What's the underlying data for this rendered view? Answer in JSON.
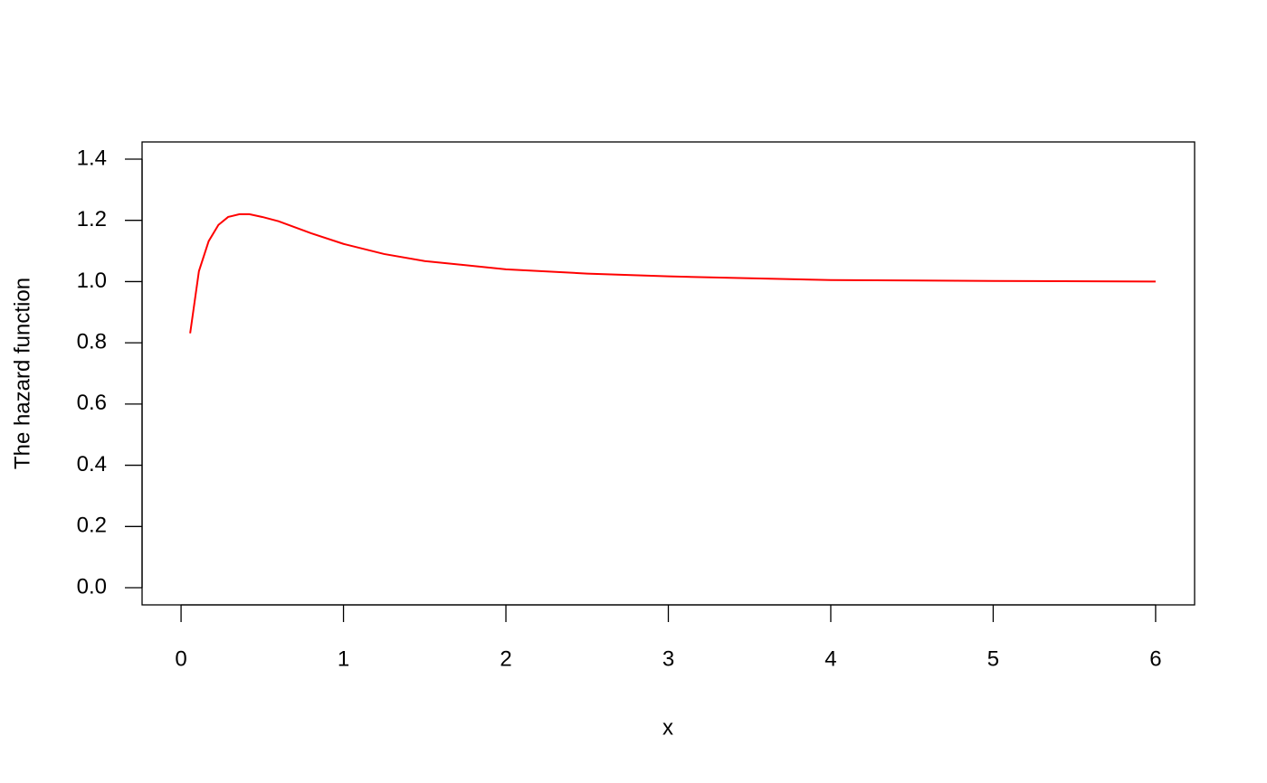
{
  "chart_data": {
    "type": "line",
    "x_label": "x",
    "y_label": "The hazard function",
    "x": [
      0.056,
      0.11,
      0.17,
      0.23,
      0.29,
      0.36,
      0.42,
      0.5,
      0.6,
      0.8,
      1.0,
      1.25,
      1.5,
      2.0,
      2.5,
      3.0,
      3.5,
      4.0,
      5.0,
      6.0
    ],
    "series": [
      {
        "color": "#ff0000",
        "values": [
          0.831,
          1.034,
          1.132,
          1.185,
          1.211,
          1.22,
          1.22,
          1.211,
          1.197,
          1.158,
          1.123,
          1.09,
          1.067,
          1.04,
          1.026,
          1.017,
          1.011,
          1.005,
          1.002,
          1.0
        ]
      }
    ],
    "xlim": [
      -0.24,
      6.24
    ],
    "ylim": [
      -0.056,
      1.456
    ],
    "xticks": [
      0,
      1,
      2,
      3,
      4,
      5,
      6
    ],
    "yticks": [
      {
        "value": 0,
        "label": "0.0"
      },
      0.2,
      0.4,
      0.6,
      0.8,
      {
        "value": 1,
        "label": "1.0"
      },
      1.2,
      1.4
    ],
    "grid": false
  }
}
